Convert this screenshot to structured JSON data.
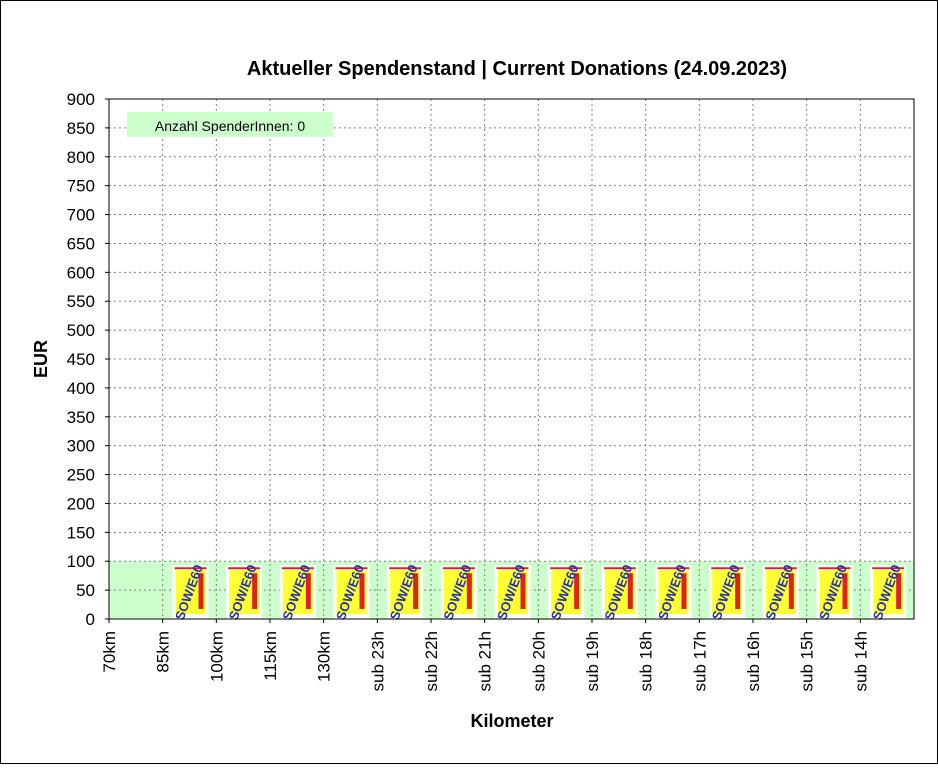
{
  "chart_data": {
    "type": "bar",
    "title": "Aktueller Spendenstand | Current Donations (24.09.2023)",
    "xlabel": "Kilometer",
    "ylabel": "EUR",
    "ylim": [
      0,
      900
    ],
    "ytick_step": 50,
    "grid": true,
    "categories": [
      "70km",
      "85km",
      "100km",
      "115km",
      "130km",
      "sub 23h",
      "sub 22h",
      "sub 21h",
      "sub 20h",
      "sub 19h",
      "sub 18h",
      "sub 17h",
      "sub 16h",
      "sub 15h",
      "sub 14h"
    ],
    "background_band": {
      "from": 0,
      "to": 100,
      "color": "#ccffcc"
    },
    "values": [
      0,
      100,
      100,
      100,
      100,
      100,
      100,
      100,
      100,
      100,
      100,
      100,
      100,
      100,
      100
    ],
    "annotation": "Anzahl SpenderInnen: 0",
    "logo_text": "SOW/E60",
    "colors": {
      "band": "#ccffcc",
      "grid": "#808080",
      "logo_yellow": "#ffff33",
      "logo_blue": "#2233aa",
      "logo_red": "#dd2222"
    }
  }
}
